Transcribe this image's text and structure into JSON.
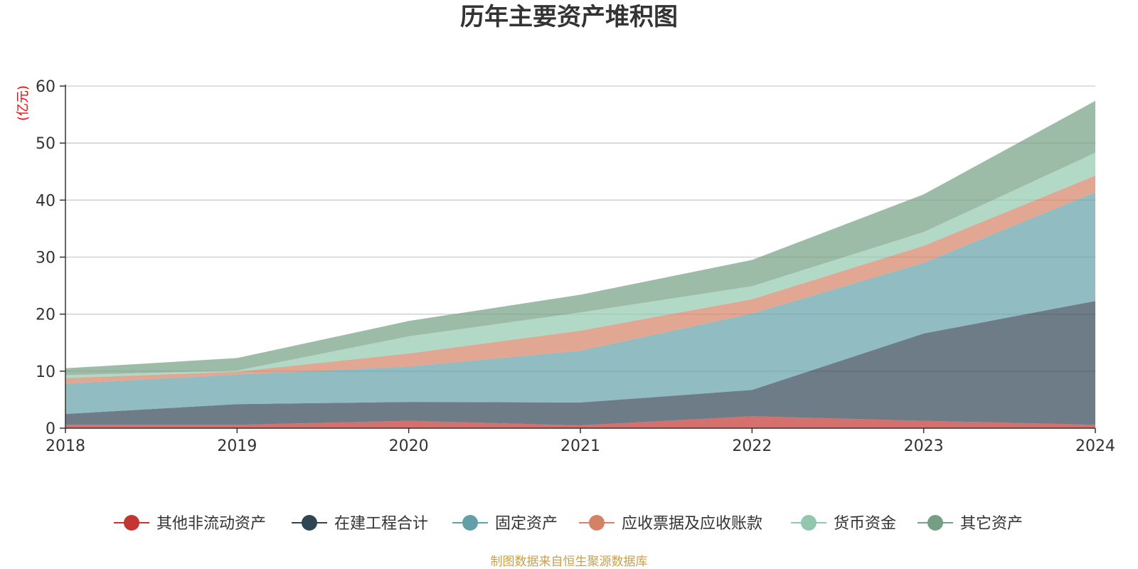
{
  "chart_data": {
    "type": "area",
    "stacked": true,
    "title": "历年主要资产堆积图",
    "unit_label": "(亿元)",
    "source": "制图数据来自恒生聚源数据库",
    "x": [
      "2018",
      "2019",
      "2020",
      "2021",
      "2022",
      "2023",
      "2024"
    ],
    "ylim": [
      0,
      60
    ],
    "yticks": [
      "0",
      "10",
      "20",
      "30",
      "40",
      "50",
      "60"
    ],
    "grid": true,
    "legend_position": "bottom",
    "series": [
      {
        "name": "其他非流动资产",
        "color": "#c23531",
        "values": [
          0.6,
          0.6,
          1.3,
          0.5,
          2.1,
          1.3,
          0.6
        ]
      },
      {
        "name": "在建工程合计",
        "color": "#2f4554",
        "values": [
          1.9,
          3.6,
          3.3,
          4.0,
          4.6,
          15.3,
          21.7
        ]
      },
      {
        "name": "固定资产",
        "color": "#61a0a8",
        "values": [
          5.3,
          5.2,
          6.2,
          9.1,
          13.4,
          12.4,
          19.1
        ]
      },
      {
        "name": "应收票据及应收账款",
        "color": "#d48265",
        "values": [
          1.0,
          0.5,
          2.3,
          3.5,
          2.5,
          3.0,
          2.9
        ]
      },
      {
        "name": "货币资金",
        "color": "#91c7ae",
        "values": [
          0.5,
          0.2,
          3.0,
          3.2,
          2.3,
          2.4,
          4.0
        ]
      },
      {
        "name": "其它资产",
        "color": "#749f83",
        "values": [
          1.2,
          2.2,
          2.7,
          3.1,
          4.6,
          6.6,
          9.1
        ]
      }
    ],
    "colors": {
      "unit": "#ff0000",
      "source": "#c9a04a",
      "axis": "#333333",
      "grid": "#cccccc"
    }
  }
}
